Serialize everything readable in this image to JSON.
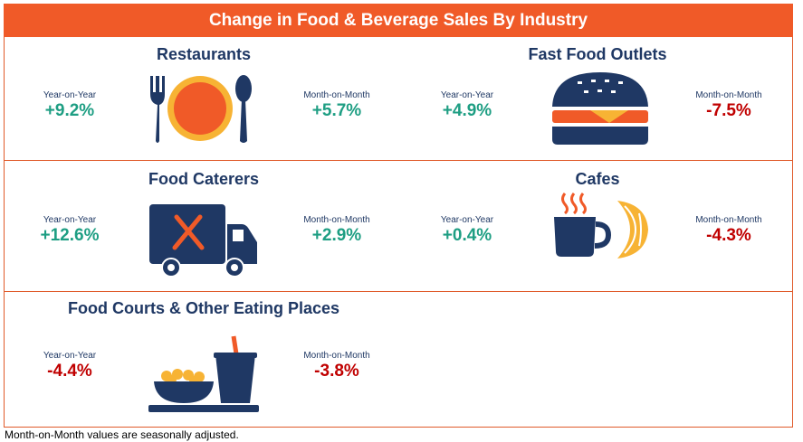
{
  "title": "Change in Food & Beverage Sales By Industry",
  "footnote": "Month-on-Month values are seasonally adjusted.",
  "colors": {
    "accent": "#f05a28",
    "navy": "#1f3864",
    "positive": "#1e9e83",
    "negative": "#c00000"
  },
  "chart_data": {
    "type": "table",
    "title": "Change in Food & Beverage Sales By Industry",
    "unit": "%",
    "columns": [
      "Year-on-Year",
      "Month-on-Month"
    ],
    "rows": [
      {
        "industry": "Restaurants",
        "icon": "plate-cutlery-icon",
        "yoy": "+9.2%",
        "mom": "+5.7%"
      },
      {
        "industry": "Fast Food Outlets",
        "icon": "burger-icon",
        "yoy": "+4.9%",
        "mom": "-7.5%"
      },
      {
        "industry": "Food Caterers",
        "icon": "delivery-van-icon",
        "yoy": "+12.6%",
        "mom": "+2.9%"
      },
      {
        "industry": "Cafes",
        "icon": "coffee-croissant-icon",
        "yoy": "+0.4%",
        "mom": "-4.3%"
      },
      {
        "industry": "Food Courts & Other Eating Places",
        "icon": "food-tray-icon",
        "yoy": "-4.4%",
        "mom": "-3.8%"
      }
    ],
    "values": {
      "Restaurants": {
        "yoy": 9.2,
        "mom": 5.7
      },
      "Fast Food Outlets": {
        "yoy": 4.9,
        "mom": -7.5
      },
      "Food Caterers": {
        "yoy": 12.6,
        "mom": 2.9
      },
      "Cafes": {
        "yoy": 0.4,
        "mom": -4.3
      },
      "Food Courts & Other Eating Places": {
        "yoy": -4.4,
        "mom": -3.8
      }
    }
  }
}
